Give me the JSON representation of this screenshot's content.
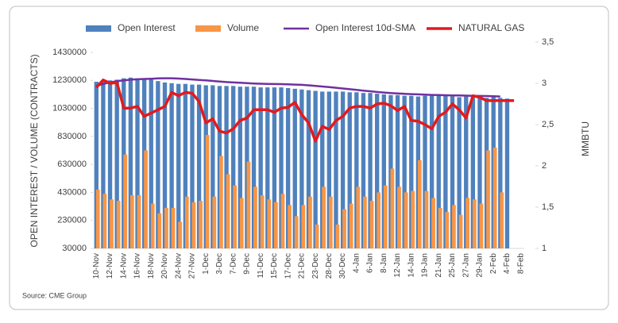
{
  "chart_data": {
    "type": "bar_line",
    "source": "Source: CME Group",
    "ylabel": "OPEN INTEREST / VOLUME (CONTRACTS)",
    "y2label": "MMBTU",
    "categories": [
      "10-Nov",
      null,
      "12-Nov",
      null,
      "14-Nov",
      null,
      "16-Nov",
      null,
      "18-Nov",
      null,
      "20-Nov",
      null,
      "24-Nov",
      null,
      "27-Nov",
      null,
      "1-Dec",
      null,
      "3-Dec",
      null,
      "7-Dec",
      null,
      "9-Dec",
      null,
      "11-Dec",
      null,
      "15-Dec",
      null,
      "17-Dec",
      null,
      "21-Dec",
      null,
      "23-Dec",
      null,
      "28-Dec",
      null,
      "30-Dec",
      null,
      "4-Jan",
      null,
      "6-Jan",
      null,
      "8-Jan",
      null,
      "12-Jan",
      null,
      "14-Jan",
      null,
      "19-Jan",
      null,
      "21-Jan",
      null,
      "25-Jan",
      null,
      "27-Jan",
      null,
      "29-Jan",
      null,
      "2-Feb",
      null,
      "4-Feb",
      null,
      "8-Feb"
    ],
    "ylim": [
      30000,
      1430000
    ],
    "yticks": [
      30000,
      230000,
      430000,
      630000,
      830000,
      1030000,
      1230000,
      1430000
    ],
    "y2lim": [
      1,
      3.5
    ],
    "y2ticks": [
      1,
      {
        "value": 1.5,
        "label": "1,5"
      },
      2,
      {
        "value": 2.5,
        "label": "2,5"
      },
      3,
      {
        "value": 3.5,
        "label": "3,5"
      }
    ],
    "series": [
      {
        "name": "Open Interest",
        "kind": "bar",
        "color": "#4f81bd",
        "values": [
          1220000,
          1225000,
          1230000,
          1235000,
          1245000,
          1250000,
          1245000,
          1240000,
          1235000,
          1225000,
          1215000,
          1210000,
          1205000,
          1205000,
          1200000,
          1200000,
          1195000,
          1195000,
          1190000,
          1190000,
          1190000,
          1185000,
          1185000,
          1185000,
          1180000,
          1180000,
          1180000,
          1180000,
          1175000,
          1170000,
          1165000,
          1160000,
          1155000,
          1150000,
          1150000,
          1150000,
          1150000,
          1145000,
          1145000,
          1140000,
          1140000,
          1135000,
          1130000,
          1125000,
          1125000,
          1120000,
          1120000,
          1115000,
          1120000,
          1125000,
          1125000,
          1120000,
          1115000,
          1110000,
          1115000,
          1115000,
          1110000,
          1105000,
          1110000,
          1105000,
          1100000,
          null,
          null
        ]
      },
      {
        "name": "Volume",
        "kind": "bar",
        "color": "#f79646",
        "values": [
          450000,
          420000,
          380000,
          370000,
          700000,
          410000,
          410000,
          730000,
          350000,
          280000,
          320000,
          320000,
          220000,
          400000,
          360000,
          370000,
          840000,
          400000,
          690000,
          560000,
          480000,
          390000,
          650000,
          470000,
          410000,
          380000,
          360000,
          420000,
          340000,
          260000,
          340000,
          400000,
          200000,
          470000,
          400000,
          200000,
          310000,
          350000,
          470000,
          400000,
          370000,
          430000,
          480000,
          600000,
          470000,
          430000,
          440000,
          660000,
          440000,
          390000,
          320000,
          290000,
          340000,
          270000,
          390000,
          380000,
          350000,
          730000,
          750000,
          430000,
          null,
          null,
          null
        ]
      },
      {
        "name": "Open Interest 10d-SMA",
        "kind": "line",
        "color": "#7030a0",
        "width": 2.5,
        "values": [
          1190000,
          1205000,
          1215000,
          1225000,
          1230000,
          1235000,
          1238000,
          1240000,
          1242000,
          1244000,
          1245000,
          1245000,
          1243000,
          1240000,
          1237000,
          1233000,
          1230000,
          1226000,
          1222000,
          1218000,
          1215000,
          1213000,
          1210000,
          1208000,
          1206000,
          1205000,
          1204000,
          1203000,
          1202000,
          1200000,
          1198000,
          1195000,
          1190000,
          1186000,
          1182000,
          1177000,
          1172000,
          1167000,
          1162000,
          1157000,
          1152000,
          1147000,
          1143000,
          1140000,
          1137000,
          1134000,
          1132000,
          1130000,
          1128000,
          1126000,
          1125000,
          1124000,
          1123000,
          1122000,
          1121000,
          1120000,
          1119000,
          1118000,
          1117000,
          1115000,
          null,
          null,
          null
        ]
      },
      {
        "name": "NATURAL GAS",
        "kind": "line",
        "axis": "y2",
        "color": "#e31a1c",
        "width": 3.5,
        "values": [
          2.95,
          3.04,
          3.0,
          3.01,
          2.7,
          2.7,
          2.72,
          2.6,
          2.64,
          2.68,
          2.72,
          2.89,
          2.85,
          2.89,
          2.88,
          2.78,
          2.52,
          2.57,
          2.42,
          2.4,
          2.45,
          2.55,
          2.58,
          2.68,
          2.68,
          2.68,
          2.65,
          2.7,
          2.71,
          2.77,
          2.62,
          2.52,
          2.3,
          2.48,
          2.44,
          2.55,
          2.6,
          2.7,
          2.72,
          2.72,
          2.7,
          2.75,
          2.76,
          2.73,
          2.67,
          2.72,
          2.55,
          2.54,
          2.5,
          2.45,
          2.6,
          2.65,
          2.75,
          2.68,
          2.58,
          2.85,
          2.83,
          2.79,
          2.79,
          2.79,
          2.79,
          2.79,
          null
        ]
      }
    ]
  }
}
